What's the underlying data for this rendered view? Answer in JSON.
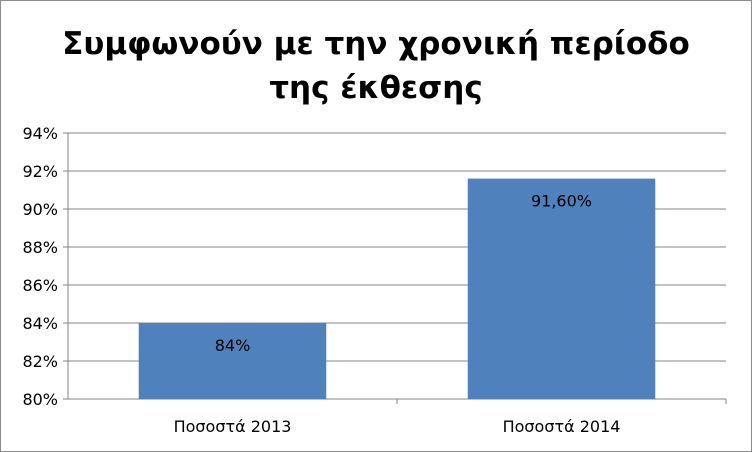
{
  "chart_data": {
    "type": "bar",
    "title_lines": [
      "Συμφωνούν με την χρονική περίοδο",
      "της έκθεσης"
    ],
    "categories": [
      "Ποσοστά 2013",
      "Ποσοστά 2014"
    ],
    "values": [
      84,
      91.6
    ],
    "data_labels": [
      "84%",
      "91,60%"
    ],
    "ylim": [
      80,
      94
    ],
    "y_ticks": [
      80,
      82,
      84,
      86,
      88,
      90,
      92,
      94
    ],
    "y_tick_labels": [
      "80%",
      "82%",
      "84%",
      "86%",
      "88%",
      "90%",
      "92%",
      "94%"
    ],
    "grid": true,
    "legend": "none",
    "bar_color": "#4f81bd"
  }
}
